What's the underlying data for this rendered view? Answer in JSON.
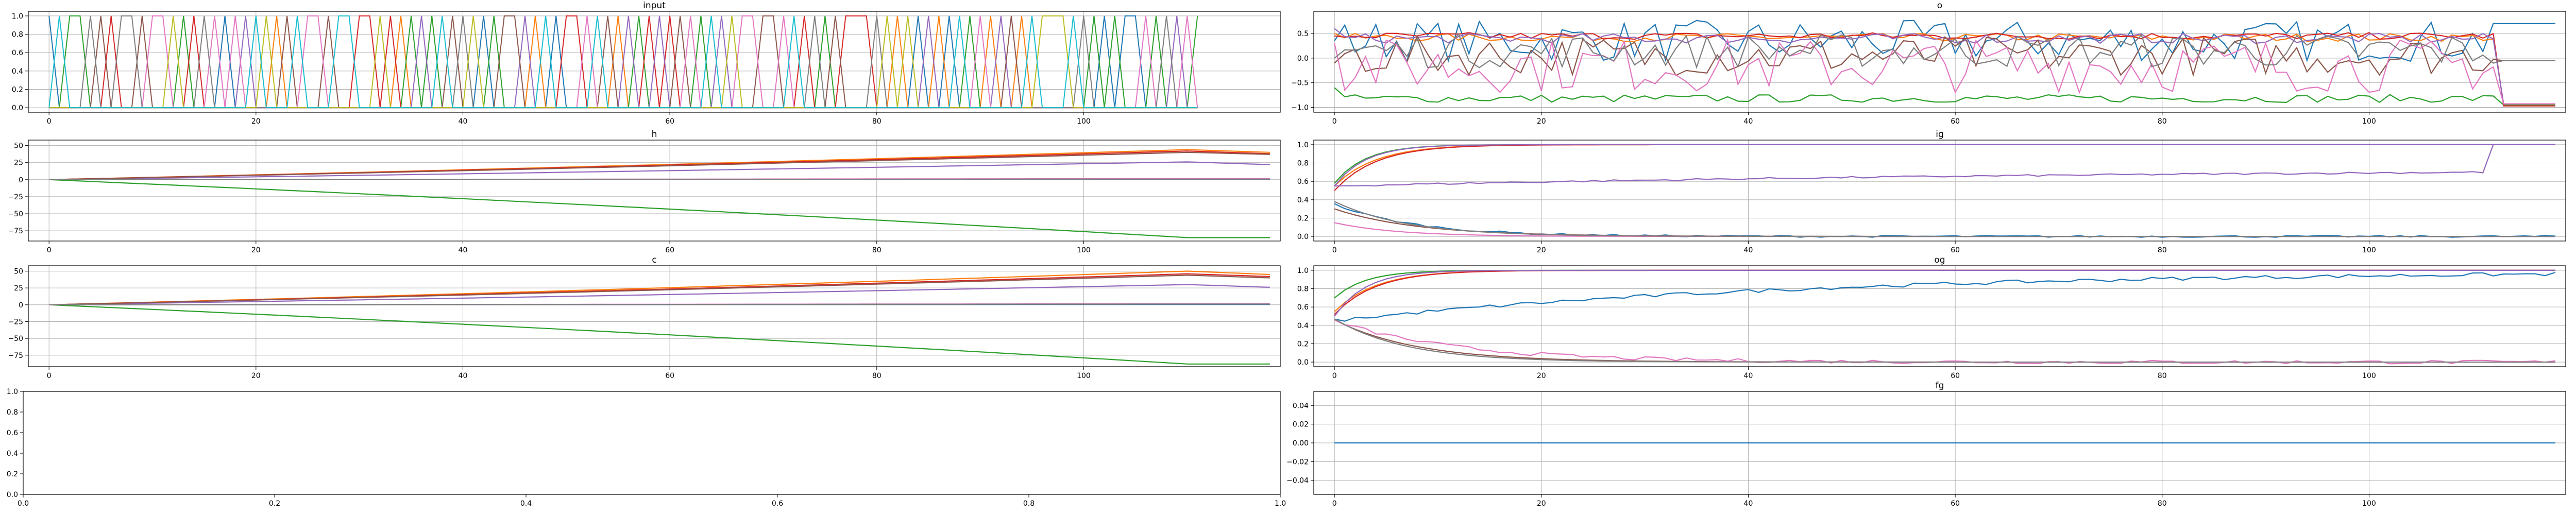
{
  "figure": {
    "background": "#ffffff"
  },
  "palette": [
    "#1f77b4",
    "#ff7f0e",
    "#2ca02c",
    "#d62728",
    "#9467bd",
    "#8c564b",
    "#e377c2",
    "#7f7f7f",
    "#bcbd22",
    "#17becf"
  ],
  "chart_data": [
    {
      "id": "input",
      "type": "line",
      "title": "input",
      "xlim": [
        -2,
        119
      ],
      "ylim": [
        -0.05,
        1.05
      ],
      "xticks": [
        0,
        20,
        40,
        60,
        80,
        100
      ],
      "yticks": [
        0.0,
        0.2,
        0.4,
        0.6,
        0.8,
        1.0
      ],
      "xtick_labels": [
        "0",
        "20",
        "40",
        "60",
        "80",
        "100"
      ],
      "ytick_labels": [
        "0.0",
        "0.2",
        "0.4",
        "0.6",
        "0.8",
        "1.0"
      ],
      "grid": true,
      "generator": "onehot",
      "n_points": 112,
      "n_series": 10,
      "series": []
    },
    {
      "id": "o",
      "type": "line",
      "title": "o",
      "xlim": [
        -2,
        119
      ],
      "ylim": [
        -1.1,
        0.95
      ],
      "xticks": [
        0,
        20,
        40,
        60,
        80,
        100
      ],
      "yticks": [
        -1.0,
        -0.5,
        0.0,
        0.5
      ],
      "xtick_labels": [
        "0",
        "20",
        "40",
        "60",
        "80",
        "100"
      ],
      "ytick_labels": [
        "−1.0",
        "−0.5",
        "0.0",
        "0.5"
      ],
      "grid": true,
      "generator": "noisy",
      "n_points": 119,
      "series": [
        {
          "color_index": 0,
          "start": 0.35,
          "mean": 0.35,
          "amp": 0.42,
          "end": 0.7,
          "end_from": 112
        },
        {
          "color_index": 1,
          "start": 0.5,
          "mean": 0.42,
          "amp": 0.08,
          "end": -0.93,
          "end_from": 113
        },
        {
          "color_index": 2,
          "start": -0.6,
          "mean": -0.82,
          "amp": 0.08,
          "end": -0.95,
          "end_from": 113
        },
        {
          "color_index": 3,
          "start": 0.45,
          "mean": 0.45,
          "amp": 0.07,
          "end": -0.97,
          "end_from": 113
        },
        {
          "color_index": 4,
          "start": 0.6,
          "mean": 0.4,
          "amp": 0.1,
          "end": -0.93,
          "end_from": 113
        },
        {
          "color_index": 5,
          "start": -0.1,
          "mean": 0.05,
          "amp": 0.4,
          "end": -0.05,
          "end_from": 113
        },
        {
          "color_index": 6,
          "start": 0.3,
          "mean": -0.15,
          "amp": 0.55,
          "end": -0.93,
          "end_from": 113
        },
        {
          "color_index": 7,
          "start": 0.0,
          "mean": 0.15,
          "amp": 0.35,
          "end": -0.05,
          "end_from": 113
        }
      ]
    },
    {
      "id": "h",
      "type": "line",
      "title": "h",
      "xlim": [
        -2,
        119
      ],
      "ylim": [
        -90,
        58
      ],
      "xticks": [
        0,
        20,
        40,
        60,
        80,
        100
      ],
      "yticks": [
        -75,
        -50,
        -25,
        0,
        25,
        50
      ],
      "xtick_labels": [
        "0",
        "20",
        "40",
        "60",
        "80",
        "100"
      ],
      "ytick_labels": [
        "−75",
        "−50",
        "−25",
        "0",
        "25",
        "50"
      ],
      "grid": true,
      "generator": "ramp",
      "n_points": 119,
      "series": [
        {
          "color_index": 0,
          "peak": 0.3,
          "end": 0.3
        },
        {
          "color_index": 1,
          "peak": 44,
          "end": 40
        },
        {
          "color_index": 2,
          "peak": -85,
          "end": -85
        },
        {
          "color_index": 3,
          "peak": 42,
          "end": 38
        },
        {
          "color_index": 4,
          "peak": 26,
          "end": 22
        },
        {
          "color_index": 5,
          "peak": 40,
          "end": 37
        },
        {
          "color_index": 6,
          "peak": 1.5,
          "end": 1.5
        },
        {
          "color_index": 7,
          "peak": 0.8,
          "end": 0.8
        }
      ]
    },
    {
      "id": "ig",
      "type": "line",
      "title": "ig",
      "xlim": [
        -2,
        119
      ],
      "ylim": [
        -0.05,
        1.05
      ],
      "xticks": [
        0,
        20,
        40,
        60,
        80,
        100
      ],
      "yticks": [
        0.0,
        0.2,
        0.4,
        0.6,
        0.8,
        1.0
      ],
      "xtick_labels": [
        "0",
        "20",
        "40",
        "60",
        "80",
        "100"
      ],
      "ytick_labels": [
        "0.0",
        "0.2",
        "0.4",
        "0.6",
        "0.8",
        "1.0"
      ],
      "grid": true,
      "generator": "sat",
      "n_points": 119,
      "series": [
        {
          "color_index": 0,
          "start": 0.35,
          "target": 0.0,
          "tau": 8,
          "noise": 0.01
        },
        {
          "color_index": 1,
          "start": 0.55,
          "target": 1.0,
          "tau": 4,
          "noise": 0.0
        },
        {
          "color_index": 2,
          "start": 0.58,
          "target": 1.0,
          "tau": 3,
          "noise": 0.0
        },
        {
          "color_index": 3,
          "start": 0.5,
          "target": 1.0,
          "tau": 4,
          "noise": 0.0
        },
        {
          "color_index": 4,
          "start": 0.55,
          "target": 1.0,
          "tau": 3,
          "noise": 0.0
        },
        {
          "color_index": 5,
          "start": 0.3,
          "target": 0.0,
          "tau": 8,
          "noise": 0.0
        },
        {
          "color_index": 6,
          "start": 0.15,
          "target": 0.0,
          "tau": 6,
          "noise": 0.0
        },
        {
          "color_index": 7,
          "start": 0.38,
          "target": 0.0,
          "tau": 7,
          "noise": 0.0
        },
        {
          "color_index": 4,
          "start": 0.55,
          "target": 0.75,
          "tau": 80,
          "noise": 0.01,
          "jump_at": 112,
          "jump_to": 1.0
        }
      ]
    },
    {
      "id": "c",
      "type": "line",
      "title": "c",
      "xlim": [
        -2,
        119
      ],
      "ylim": [
        -92,
        58
      ],
      "xticks": [
        0,
        20,
        40,
        60,
        80,
        100
      ],
      "yticks": [
        -75,
        -50,
        -25,
        0,
        25,
        50
      ],
      "xtick_labels": [
        "0",
        "20",
        "40",
        "60",
        "80",
        "100"
      ],
      "ytick_labels": [
        "−75",
        "−50",
        "−25",
        "0",
        "25",
        "50"
      ],
      "grid": true,
      "generator": "ramp",
      "n_points": 119,
      "series": [
        {
          "color_index": 0,
          "peak": 0.5,
          "end": 0.5
        },
        {
          "color_index": 1,
          "peak": 50,
          "end": 45
        },
        {
          "color_index": 2,
          "peak": -88,
          "end": -88
        },
        {
          "color_index": 3,
          "peak": 46,
          "end": 42
        },
        {
          "color_index": 4,
          "peak": 30,
          "end": 26
        },
        {
          "color_index": 5,
          "peak": 44,
          "end": 40
        },
        {
          "color_index": 6,
          "peak": 1.5,
          "end": 1.5
        },
        {
          "color_index": 7,
          "peak": 1.0,
          "end": 1.0
        }
      ]
    },
    {
      "id": "og",
      "type": "line",
      "title": "og",
      "xlim": [
        -2,
        119
      ],
      "ylim": [
        -0.05,
        1.05
      ],
      "xticks": [
        0,
        20,
        40,
        60,
        80,
        100
      ],
      "yticks": [
        0.0,
        0.2,
        0.4,
        0.6,
        0.8,
        1.0
      ],
      "xtick_labels": [
        "0",
        "20",
        "40",
        "60",
        "80",
        "100"
      ],
      "ytick_labels": [
        "0.0",
        "0.2",
        "0.4",
        "0.6",
        "0.8",
        "1.0"
      ],
      "grid": true,
      "generator": "sat",
      "n_points": 119,
      "series": [
        {
          "color_index": 0,
          "start": 0.45,
          "target": 1.0,
          "tau": 45,
          "noise": 0.02
        },
        {
          "color_index": 1,
          "start": 0.55,
          "target": 1.0,
          "tau": 4,
          "noise": 0.0
        },
        {
          "color_index": 2,
          "start": 0.7,
          "target": 1.0,
          "tau": 3,
          "noise": 0.0
        },
        {
          "color_index": 3,
          "start": 0.52,
          "target": 1.0,
          "tau": 4,
          "noise": 0.0
        },
        {
          "color_index": 4,
          "start": 0.5,
          "target": 1.0,
          "tau": 3,
          "noise": 0.0
        },
        {
          "color_index": 5,
          "start": 0.46,
          "target": 0.0,
          "tau": 8,
          "noise": 0.0
        },
        {
          "color_index": 6,
          "start": 0.45,
          "target": 0.0,
          "tau": 12,
          "noise": 0.02
        },
        {
          "color_index": 7,
          "start": 0.47,
          "target": 0.0,
          "tau": 7,
          "noise": 0.0
        }
      ]
    },
    {
      "id": "empty",
      "type": "line",
      "title": "",
      "xlim": [
        0,
        1
      ],
      "ylim": [
        0,
        1
      ],
      "xticks": [
        0,
        0.2,
        0.4,
        0.6,
        0.8,
        1.0
      ],
      "yticks": [
        0,
        0.2,
        0.4,
        0.6,
        0.8,
        1.0
      ],
      "xtick_labels": [
        "0.0",
        "0.2",
        "0.4",
        "0.6",
        "0.8",
        "1.0"
      ],
      "ytick_labels": [
        "0.0",
        "0.2",
        "0.4",
        "0.6",
        "0.8",
        "1.0"
      ],
      "grid": false,
      "generator": "none",
      "series": []
    },
    {
      "id": "fg",
      "type": "line",
      "title": "fg",
      "xlim": [
        -2,
        119
      ],
      "ylim": [
        -0.055,
        0.055
      ],
      "xticks": [
        0,
        20,
        40,
        60,
        80,
        100
      ],
      "yticks": [
        -0.04,
        -0.02,
        0.0,
        0.02,
        0.04
      ],
      "xtick_labels": [
        "0",
        "20",
        "40",
        "60",
        "80",
        "100"
      ],
      "ytick_labels": [
        "−0.04",
        "−0.02",
        "0.00",
        "0.02",
        "0.04"
      ],
      "grid": true,
      "generator": "flat",
      "n_points": 119,
      "series": [
        {
          "color_index": 0,
          "value": 0.0
        }
      ]
    }
  ]
}
